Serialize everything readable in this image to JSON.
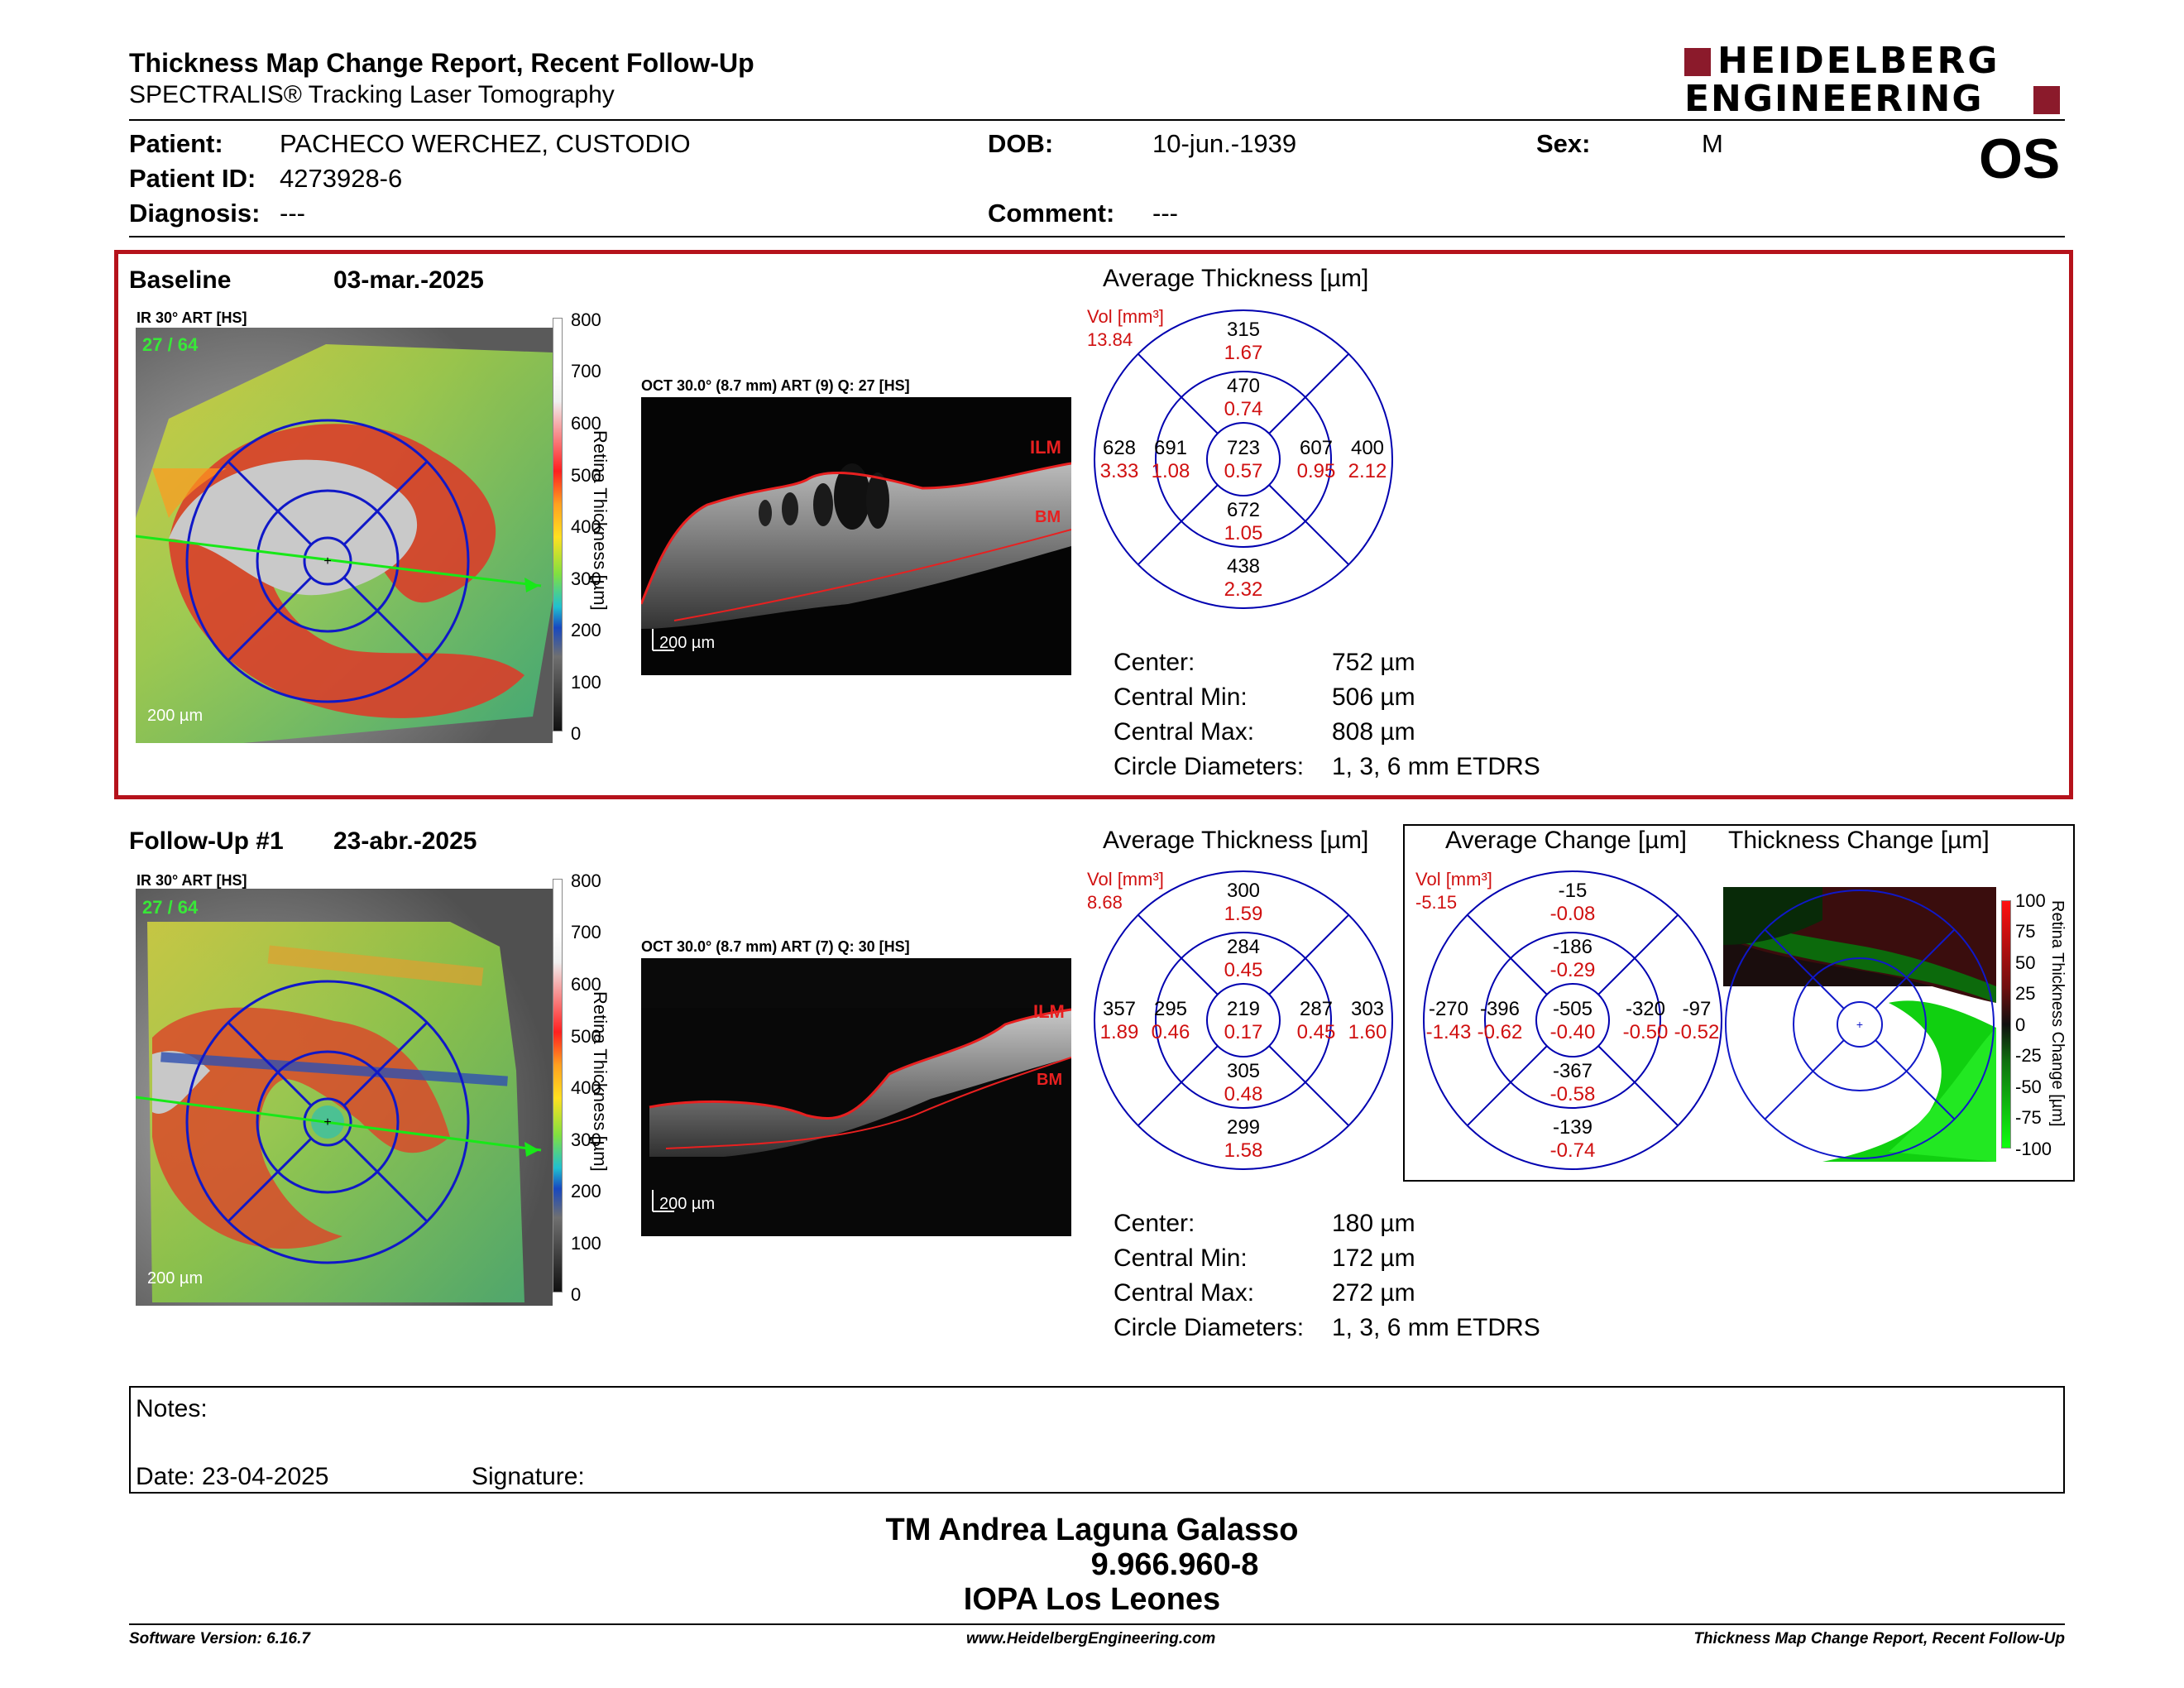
{
  "header": {
    "title": "Thickness Map Change Report, Recent Follow-Up",
    "subtitle": "SPECTRALIS® Tracking Laser Tomography",
    "brand_line1": "HEIDELBERG",
    "brand_line2": "ENGINEERING",
    "eye": "OS"
  },
  "patient": {
    "patient_label": "Patient:",
    "patient_name": "PACHECO WERCHEZ, CUSTODIO",
    "dob_label": "DOB:",
    "dob": "10-jun.-1939",
    "sex_label": "Sex:",
    "sex": "M",
    "id_label": "Patient ID:",
    "id": "4273928-6",
    "diagnosis_label": "Diagnosis:",
    "diagnosis": "---",
    "comment_label": "Comment:",
    "comment": "---"
  },
  "baseline": {
    "label": "Baseline",
    "date": "03-mar.-2025",
    "ir_label": "IR 30° ART [HS]",
    "ir_overlay": "27 / 64",
    "oct_label": "OCT 30.0° (8.7 mm) ART (9) Q: 27 [HS]",
    "ilm": "ILM",
    "bm": "BM",
    "scale": "200 µm",
    "colorbar_title": "Retina Thickness [µm]",
    "colorbar_ticks": [
      "800",
      "700",
      "600",
      "500",
      "400",
      "300",
      "200",
      "100",
      "0"
    ],
    "avg_title": "Average Thickness [µm]",
    "vol_label": "Vol [mm³]",
    "vol_total": "13.84",
    "etdrs": {
      "center": [
        "723",
        "0.57"
      ],
      "inner_top": [
        "470",
        "0.74"
      ],
      "inner_nasal": [
        "691",
        "1.08"
      ],
      "inner_temporal": [
        "607",
        "0.95"
      ],
      "inner_bottom": [
        "672",
        "1.05"
      ],
      "outer_top": [
        "315",
        "1.67"
      ],
      "outer_nasal": [
        "628",
        "3.33"
      ],
      "outer_temporal": [
        "400",
        "2.12"
      ],
      "outer_bottom": [
        "438",
        "2.32"
      ]
    },
    "stats": [
      {
        "l": "Center:",
        "v": "752 µm"
      },
      {
        "l": "Central Min:",
        "v": "506 µm"
      },
      {
        "l": "Central Max:",
        "v": "808 µm"
      },
      {
        "l": "Circle Diameters:",
        "v": "1, 3, 6 mm ETDRS"
      }
    ]
  },
  "followup": {
    "label": "Follow-Up #1",
    "date": "23-abr.-2025",
    "ir_label": "IR 30° ART [HS]",
    "ir_overlay": "27 / 64",
    "oct_label": "OCT 30.0° (8.7 mm) ART (7) Q: 30 [HS]",
    "ilm": "ILM",
    "bm": "BM",
    "scale": "200 µm",
    "colorbar_title": "Retina Thickness [µm]",
    "colorbar_ticks": [
      "800",
      "700",
      "600",
      "500",
      "400",
      "300",
      "200",
      "100",
      "0"
    ],
    "avg_title": "Average Thickness [µm]",
    "vol_label": "Vol [mm³]",
    "vol_total": "8.68",
    "etdrs": {
      "center": [
        "219",
        "0.17"
      ],
      "inner_top": [
        "284",
        "0.45"
      ],
      "inner_nasal": [
        "295",
        "0.46"
      ],
      "inner_temporal": [
        "287",
        "0.45"
      ],
      "inner_bottom": [
        "305",
        "0.48"
      ],
      "outer_top": [
        "300",
        "1.59"
      ],
      "outer_nasal": [
        "357",
        "1.89"
      ],
      "outer_temporal": [
        "303",
        "1.60"
      ],
      "outer_bottom": [
        "299",
        "1.58"
      ]
    },
    "stats": [
      {
        "l": "Center:",
        "v": "180 µm"
      },
      {
        "l": "Central Min:",
        "v": "172 µm"
      },
      {
        "l": "Central Max:",
        "v": "272 µm"
      },
      {
        "l": "Circle Diameters:",
        "v": "1, 3, 6 mm ETDRS"
      }
    ],
    "change_title": "Average Change [µm]",
    "change_vol_label": "Vol [mm³]",
    "change_vol_total": "-5.15",
    "change_etdrs": {
      "center": [
        "-505",
        "-0.40"
      ],
      "inner_top": [
        "-186",
        "-0.29"
      ],
      "inner_nasal": [
        "-396",
        "-0.62"
      ],
      "inner_temporal": [
        "-320",
        "-0.50"
      ],
      "inner_bottom": [
        "-367",
        "-0.58"
      ],
      "outer_top": [
        "-15",
        "-0.08"
      ],
      "outer_nasal": [
        "-270",
        "-1.43"
      ],
      "outer_temporal": [
        "-97",
        "-0.52"
      ],
      "outer_bottom": [
        "-139",
        "-0.74"
      ]
    },
    "thick_change_title": "Thickness Change [µm]",
    "change_bar_title": "Retina Thickness Change [µm]",
    "change_ticks": [
      "100",
      "75",
      "50",
      "25",
      "0",
      "-25",
      "-50",
      "-75",
      "-100"
    ]
  },
  "notes": {
    "notes_label": "Notes:",
    "date_label": "Date: 23-04-2025",
    "signature_label": "Signature:"
  },
  "signer": {
    "name": "TM Andrea Laguna Galasso",
    "id": "9.966.960-8",
    "institution": "IOPA Los Leones"
  },
  "footer": {
    "left": "Software Version: 6.16.7",
    "center": "www.HeidelbergEngineering.com",
    "right": "Thickness Map Change Report, Recent Follow-Up"
  },
  "colors": {
    "red": "#b5121b",
    "blue": "#0000b0",
    "value_red": "#d01010"
  }
}
